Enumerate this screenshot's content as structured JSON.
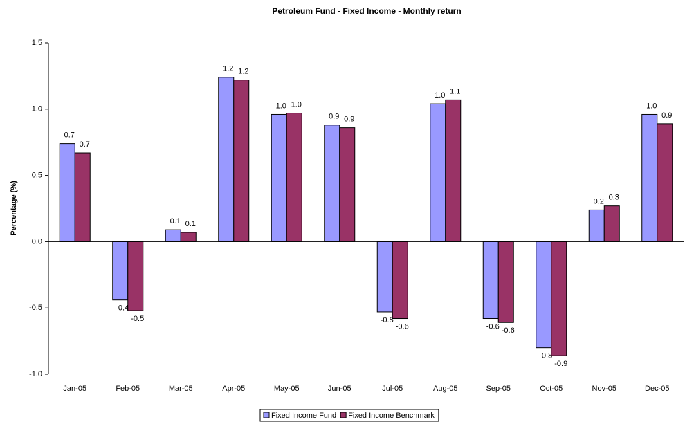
{
  "chart_data": {
    "type": "bar",
    "title": "Petroleum Fund - Fixed Income - Monthly return",
    "y_label": "Percentage (%)",
    "categories": [
      "Jan-05",
      "Feb-05",
      "Mar-05",
      "Apr-05",
      "May-05",
      "Jun-05",
      "Jul-05",
      "Aug-05",
      "Sep-05",
      "Oct-05",
      "Nov-05",
      "Dec-05"
    ],
    "series": [
      {
        "name": "Fixed Income Fund",
        "color": "#9999ff",
        "values": [
          0.74,
          -0.44,
          0.09,
          1.24,
          0.96,
          0.88,
          -0.53,
          1.04,
          -0.58,
          -0.8,
          0.24,
          0.96
        ],
        "value_labels": [
          "0.7",
          "-0.4",
          "0.1",
          "1.2",
          "1.0",
          "0.9",
          "-0.5",
          "1.0",
          "-0.6",
          "-0.8",
          "0.2",
          "1.0"
        ]
      },
      {
        "name": "Fixed Income Benchmark",
        "color": "#993366",
        "values": [
          0.67,
          -0.52,
          0.07,
          1.22,
          0.97,
          0.86,
          -0.58,
          1.07,
          -0.61,
          -0.86,
          0.27,
          0.89
        ],
        "value_labels": [
          "0.7",
          "-0.5",
          "0.1",
          "1.2",
          "1.0",
          "0.9",
          "-0.6",
          "1.1",
          "-0.6",
          "-0.9",
          "0.3",
          "0.9"
        ]
      }
    ],
    "ylim": [
      -1,
      1.5
    ],
    "yticks": [
      {
        "value": -1,
        "label": "-1.0"
      },
      -0.5,
      {
        "value": 0,
        "label": "0.0"
      },
      0.5,
      {
        "value": 1,
        "label": "1.0"
      },
      1.5
    ],
    "grid": false,
    "legend": "bottom"
  }
}
